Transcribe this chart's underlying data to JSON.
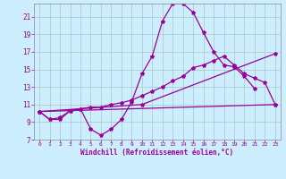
{
  "xlabel": "Windchill (Refroidissement éolien,°C)",
  "bg_color": "#cceeff",
  "grid_color": "#aaddcc",
  "line_color": "#990099",
  "xlim": [
    -0.5,
    23.5
  ],
  "ylim": [
    7,
    22.5
  ],
  "yticks": [
    7,
    9,
    11,
    13,
    15,
    17,
    19,
    21
  ],
  "xticks": [
    0,
    1,
    2,
    3,
    4,
    5,
    6,
    7,
    8,
    9,
    10,
    11,
    12,
    13,
    14,
    15,
    16,
    17,
    18,
    19,
    20,
    21,
    22,
    23
  ],
  "line1_x": [
    0,
    1,
    2,
    3,
    4,
    5,
    6,
    7,
    8,
    9,
    10,
    11,
    12,
    13,
    14,
    15,
    16,
    17,
    18,
    19,
    20,
    21,
    22,
    23
  ],
  "line1_y": [
    10.2,
    9.3,
    9.3,
    10.3,
    10.5,
    8.2,
    7.5,
    8.2,
    9.3,
    11.3,
    14.5,
    16.5,
    20.5,
    22.5,
    22.5,
    21.5,
    19.2,
    17.0,
    15.5,
    15.3,
    14.2,
    12.8,
    null,
    null
  ],
  "line2_x": [
    0,
    1,
    2,
    3,
    4,
    5,
    6,
    7,
    8,
    9,
    10,
    11,
    12,
    13,
    14,
    15,
    16,
    17,
    18,
    19,
    20,
    21,
    22,
    23
  ],
  "line2_y": [
    10.2,
    9.3,
    9.5,
    10.3,
    10.5,
    10.7,
    10.7,
    11.0,
    11.2,
    11.5,
    12.0,
    12.5,
    13.0,
    13.7,
    14.2,
    15.2,
    15.5,
    16.0,
    16.5,
    15.5,
    14.5,
    14.0,
    13.5,
    11.0
  ],
  "line3_x": [
    0,
    23
  ],
  "line3_y": [
    10.2,
    11.0
  ],
  "line4_x": [
    0,
    10,
    23
  ],
  "line4_y": [
    10.2,
    11.0,
    16.8
  ]
}
